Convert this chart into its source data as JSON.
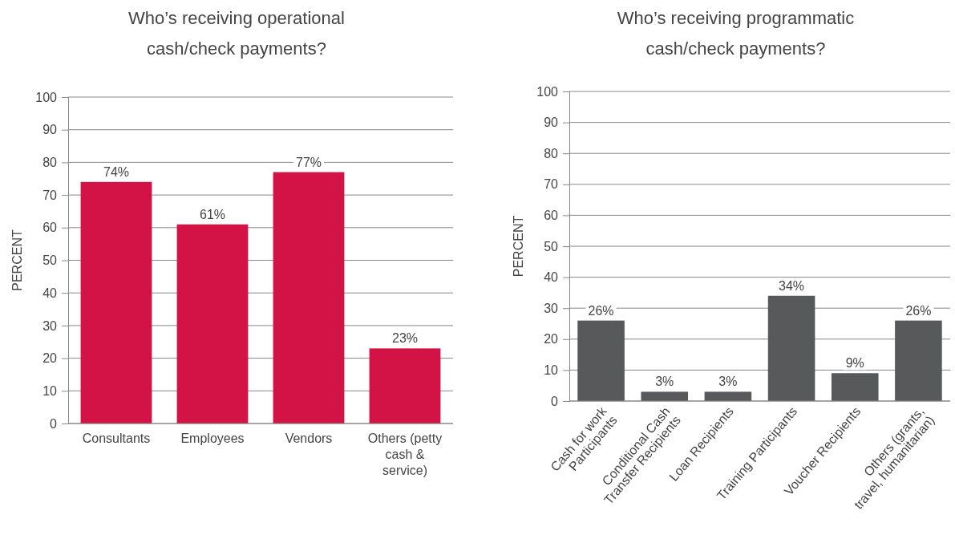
{
  "chart_data": [
    {
      "type": "bar",
      "title": "Who’s receiving operational cash/check payments?",
      "ylabel": "PERCENT",
      "categories": [
        "Consultants",
        "Employees",
        "Vendors",
        "Others (petty cash & service)"
      ],
      "values": [
        74,
        61,
        77,
        23
      ],
      "value_labels": [
        "74%",
        "61%",
        "77%",
        "23%"
      ],
      "color": "#d31245",
      "ylim": [
        0,
        100
      ],
      "yticks": [
        0,
        10,
        20,
        30,
        40,
        50,
        60,
        70,
        80,
        90,
        100
      ],
      "grid": "y"
    },
    {
      "type": "bar",
      "title": "Who’s receiving programmatic cash/check payments?",
      "ylabel": "PERCENT",
      "categories": [
        "Cash for work Participants",
        "Conditional Cash Transfer Recipients",
        "Loan Recipients",
        "Training Participants",
        "Voucher Recipients",
        "Others (grants, travel, humanitarian)"
      ],
      "values": [
        26,
        3,
        3,
        34,
        9,
        26
      ],
      "value_labels": [
        "26%",
        "3%",
        "3%",
        "34%",
        "9%",
        "26%"
      ],
      "color": "#58595b",
      "ylim": [
        0,
        100
      ],
      "yticks": [
        0,
        10,
        20,
        30,
        40,
        50,
        60,
        70,
        80,
        90,
        100
      ],
      "grid": "y"
    }
  ]
}
